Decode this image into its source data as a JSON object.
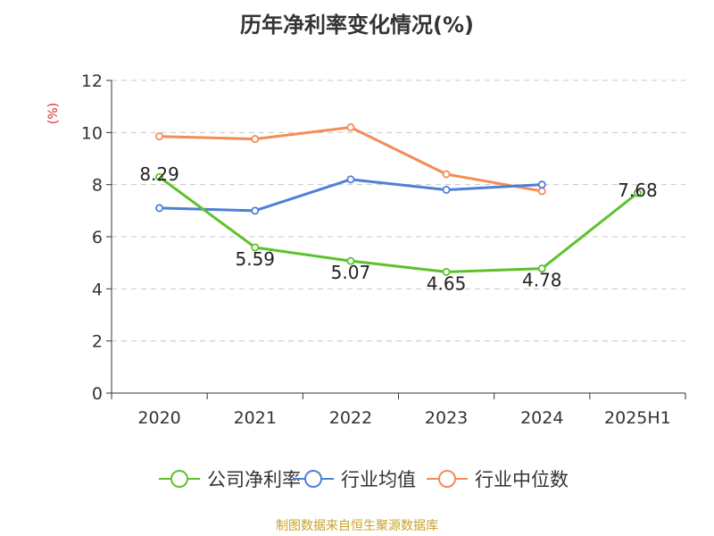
{
  "chart_data": {
    "type": "line",
    "title": "历年净利率变化情况(%)",
    "ylabel": "(%)",
    "ylim": [
      0,
      12
    ],
    "yticks": [
      0,
      2,
      4,
      6,
      8,
      10,
      12
    ],
    "grid": true,
    "legend_position": "bottom",
    "categories": [
      "2020",
      "2021",
      "2022",
      "2023",
      "2024",
      "2025H1"
    ],
    "series": [
      {
        "name": "公司净利率",
        "color": "#5cc22b",
        "labels": true,
        "values": [
          8.29,
          5.59,
          5.07,
          4.65,
          4.78,
          7.68
        ]
      },
      {
        "name": "行业均值",
        "color": "#4f7fd6",
        "labels": false,
        "values": [
          7.1,
          7.0,
          8.2,
          7.8,
          8.0,
          null
        ]
      },
      {
        "name": "行业中位数",
        "color": "#f58c55",
        "labels": false,
        "values": [
          9.85,
          9.75,
          10.2,
          8.4,
          7.75,
          null
        ]
      }
    ]
  },
  "source_text": "制图数据来自恒生聚源数据库"
}
